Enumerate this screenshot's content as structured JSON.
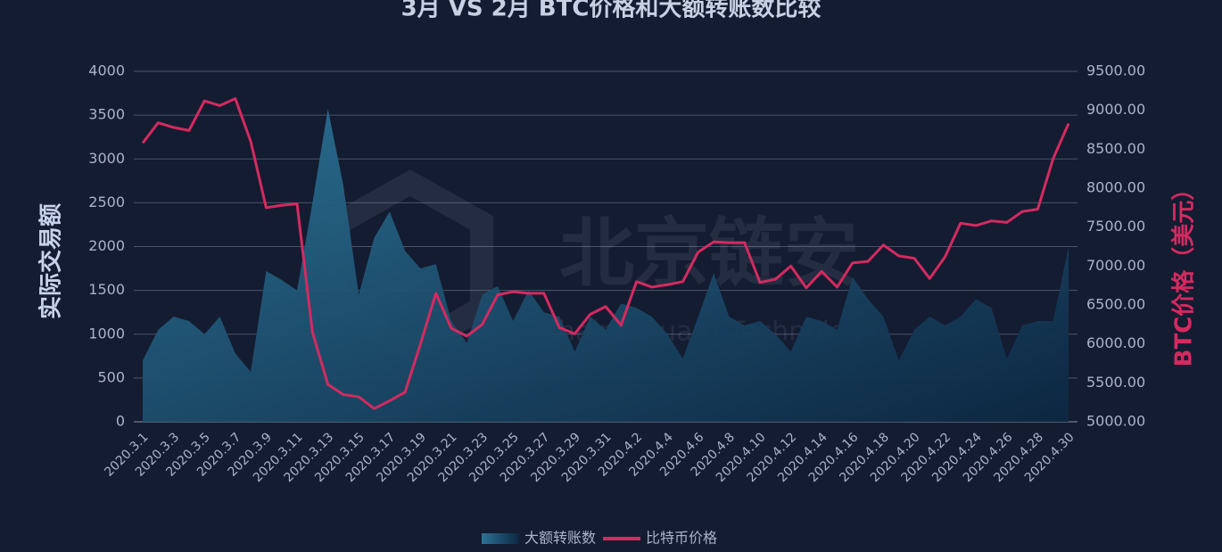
{
  "chart_data": {
    "type": "area-line",
    "title": "3月 VS 2月 BTC价格和大额转账数比较",
    "ylabel": "实际交易额",
    "y2label": "BTC价格（美元）",
    "watermark": [
      "北京链安",
      "Chains Guard Technology"
    ],
    "categories": [
      "2020.3.1",
      null,
      "2020.3.3",
      null,
      "2020.3.5",
      null,
      "2020.3.7",
      null,
      "2020.3.9",
      null,
      "2020.3.11",
      null,
      "2020.3.13",
      null,
      "2020.3.15",
      null,
      "2020.3.17",
      null,
      "2020.3.19",
      null,
      "2020.3.21",
      null,
      "2020.3.23",
      null,
      "2020.3.25",
      null,
      "2020.3.27",
      null,
      "2020.3.29",
      null,
      "2020.3.31",
      null,
      "2020.4.2",
      null,
      "2020.4.4",
      null,
      "2020.4.6",
      null,
      "2020.4.8",
      null,
      "2020.4.10",
      null,
      "2020.4.12",
      null,
      "2020.4.14",
      null,
      "2020.4.16",
      null,
      "2020.4.18",
      null,
      "2020.4.20",
      null,
      "2020.4.22",
      null,
      "2020.4.24",
      null,
      "2020.4.26",
      null,
      "2020.4.28",
      null,
      "2020.4.30"
    ],
    "series": [
      {
        "name": "大额转账数",
        "type": "area",
        "color": "#2b6d8f",
        "values": [
          700,
          1050,
          1200,
          1150,
          1000,
          1200,
          780,
          570,
          1720,
          1620,
          1500,
          2500,
          3570,
          2700,
          1450,
          2100,
          2400,
          1950,
          1750,
          1800,
          1150,
          900,
          1450,
          1550,
          1150,
          1500,
          1250,
          1200,
          800,
          1200,
          1050,
          1350,
          1300,
          1200,
          1000,
          720,
          1200,
          1700,
          1200,
          1100,
          1150,
          1000,
          800,
          1200,
          1150,
          1050,
          1650,
          1400,
          1200,
          700,
          1050,
          1200,
          1100,
          1200,
          1400,
          1300,
          720,
          1100,
          1150,
          1150,
          2000
        ]
      },
      {
        "name": "比特币价格",
        "type": "line",
        "axis": "y2",
        "color": "#d42a60",
        "values": [
          8580,
          8840,
          8780,
          8740,
          9120,
          9060,
          9150,
          8600,
          7750,
          7780,
          7800,
          6150,
          5480,
          5350,
          5320,
          5170,
          5270,
          5380,
          6000,
          6650,
          6200,
          6100,
          6250,
          6630,
          6670,
          6650,
          6650,
          6210,
          6130,
          6380,
          6480,
          6240,
          6800,
          6730,
          6760,
          6800,
          7180,
          7310,
          7300,
          7300,
          6790,
          6830,
          7000,
          6720,
          6930,
          6730,
          7040,
          7060,
          7270,
          7130,
          7100,
          6840,
          7120,
          7550,
          7520,
          7580,
          7560,
          7700,
          7730,
          8380,
          8830
        ]
      }
    ],
    "ylim": [
      0,
      4000
    ],
    "yticks": [
      0,
      500,
      1000,
      1500,
      2000,
      2500,
      3000,
      3500,
      4000
    ],
    "y2lim": [
      5000,
      9500
    ],
    "y2ticks": [
      {
        "value": 5000,
        "label": "5000.00"
      },
      {
        "value": 5500,
        "label": "5500.00"
      },
      {
        "value": 6000,
        "label": "6000.00"
      },
      {
        "value": 6500,
        "label": "6500.00"
      },
      {
        "value": 7000,
        "label": "7000.00"
      },
      {
        "value": 7500,
        "label": "7500.00"
      },
      {
        "value": 8000,
        "label": "8000.00"
      },
      {
        "value": 8500,
        "label": "8500.00"
      },
      {
        "value": 9000,
        "label": "9000.00"
      },
      {
        "value": 9500,
        "label": "9500.00"
      }
    ],
    "grid": true,
    "legend": "bottom"
  }
}
